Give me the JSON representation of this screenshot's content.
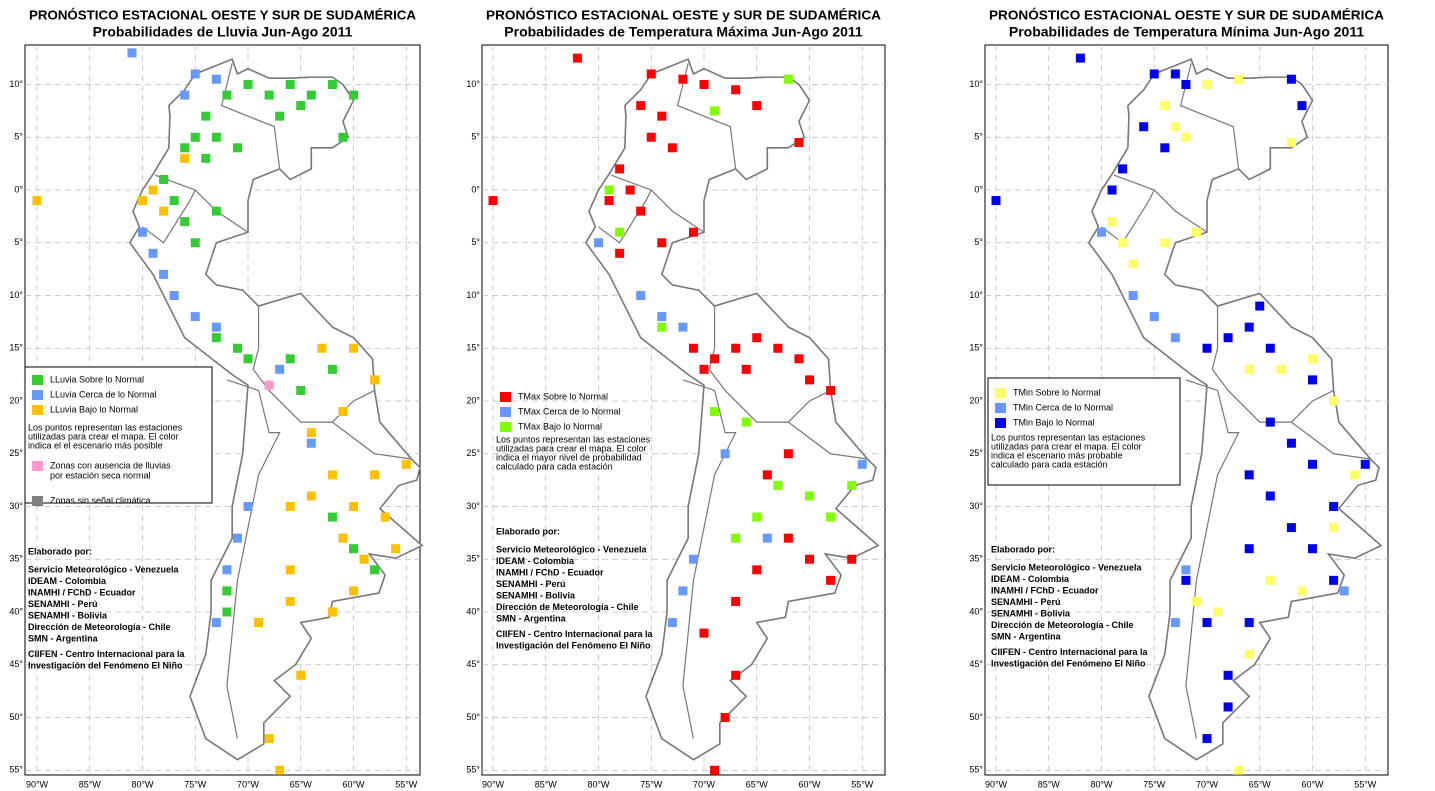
{
  "lat_ticks": [
    {
      "value": 10,
      "label": "10°"
    },
    {
      "value": 5,
      "label": "5°"
    },
    {
      "value": 0,
      "label": "0°"
    },
    {
      "value": -5,
      "label": "5°"
    },
    {
      "value": -10,
      "label": "10°"
    },
    {
      "value": -15,
      "label": "15°"
    },
    {
      "value": -20,
      "label": "20°"
    },
    {
      "value": -25,
      "label": "25°"
    },
    {
      "value": -30,
      "label": "30°"
    },
    {
      "value": -35,
      "label": "35°"
    },
    {
      "value": -40,
      "label": "40°"
    },
    {
      "value": -45,
      "label": "45°"
    },
    {
      "value": -50,
      "label": "50°"
    },
    {
      "value": -55,
      "label": "55°"
    }
  ],
  "lon_ticks": [
    {
      "value": -90,
      "label": "90°W"
    },
    {
      "value": -85,
      "label": "85°W"
    },
    {
      "value": -80,
      "label": "80°W"
    },
    {
      "value": -75,
      "label": "75°W"
    },
    {
      "value": -70,
      "label": "70°W"
    },
    {
      "value": -65,
      "label": "65°W"
    },
    {
      "value": -60,
      "label": "60°W"
    },
    {
      "value": -55,
      "label": "55°W"
    }
  ],
  "credits_title": "Elaborado por:",
  "credits": [
    "Servicio Meteorológico - Venezuela",
    "IDEAM - Colombia",
    "INAMHI / FChD - Ecuador",
    "SENAMHI - Perú",
    "SENAMHI - Bolivia",
    "Dirección de Meteorología - Chile",
    "SMN - Argentina",
    "CIIFEN - Centro Internacional para la",
    "Investigación del Fenómeno El Niño"
  ],
  "panels": [
    {
      "title": "PRONÓSTICO ESTACIONAL OESTE Y SUR DE SUDAMÉRICA",
      "subtitle": "Probabilidades de Lluvia Jun-Ago 2011",
      "legend": [
        {
          "label": "LLuvia Sobre lo Normal",
          "color": "#33cc33"
        },
        {
          "label": "LLuvia Cerca de lo Normal",
          "color": "#6699ff"
        },
        {
          "label": "LLuvia Bajo lo Normal",
          "color": "#ffc000"
        }
      ],
      "note": [
        "Los puntos representan las estaciones",
        "utilizadas para crear el mapa. El color",
        "indica el el escenario más posible"
      ],
      "extra": [
        {
          "lines": [
            "Zonas con ausencia de lluvias",
            "por estación seca normal"
          ],
          "color": "#ff99cc"
        },
        {
          "lines": [
            "Zonas sin señal climática"
          ],
          "color": "#808080"
        }
      ],
      "stations": [
        [
          -70,
          10,
          0
        ],
        [
          -68,
          9,
          0
        ],
        [
          -66,
          10,
          0
        ],
        [
          -64,
          9,
          0
        ],
        [
          -62,
          10,
          0
        ],
        [
          -60,
          9,
          0
        ],
        [
          -65,
          8,
          0
        ],
        [
          -67,
          7,
          0
        ],
        [
          -72,
          9,
          0
        ],
        [
          -74,
          7,
          0
        ],
        [
          -75,
          5,
          0
        ],
        [
          -76,
          4,
          0
        ],
        [
          -73,
          5,
          0
        ],
        [
          -71,
          4,
          0
        ],
        [
          -61,
          5,
          0
        ],
        [
          -74,
          3,
          0
        ],
        [
          -78,
          1,
          0
        ],
        [
          -77,
          -1,
          0
        ],
        [
          -76,
          -3,
          0
        ],
        [
          -73,
          -2,
          0
        ],
        [
          -75,
          -5,
          0
        ],
        [
          -73,
          -14,
          0
        ],
        [
          -71,
          -15,
          0
        ],
        [
          -70,
          -16,
          0
        ],
        [
          -66,
          -16,
          0
        ],
        [
          -62,
          -17,
          0
        ],
        [
          -65,
          -19,
          0
        ],
        [
          -72,
          -40,
          0
        ],
        [
          -72,
          -38,
          0
        ],
        [
          -60,
          -34,
          0
        ],
        [
          -58,
          -36,
          0
        ],
        [
          -62,
          -31,
          0
        ],
        [
          -81,
          13,
          1
        ],
        [
          -75,
          11,
          1
        ],
        [
          -73,
          10.5,
          1
        ],
        [
          -76,
          9,
          1
        ],
        [
          -80,
          -4,
          1
        ],
        [
          -79,
          -6,
          1
        ],
        [
          -78,
          -8,
          1
        ],
        [
          -77,
          -10,
          1
        ],
        [
          -75,
          -12,
          1
        ],
        [
          -73,
          -13,
          1
        ],
        [
          -67,
          -17,
          1
        ],
        [
          -70,
          -30,
          1
        ],
        [
          -71,
          -33,
          1
        ],
        [
          -72,
          -36,
          1
        ],
        [
          -73,
          -41,
          1
        ],
        [
          -64,
          -24,
          1
        ],
        [
          -80,
          -1,
          2
        ],
        [
          -79,
          0,
          2
        ],
        [
          -78,
          -2,
          2
        ],
        [
          -76,
          3,
          2
        ],
        [
          -90,
          -1,
          2
        ],
        [
          -60,
          -15,
          2
        ],
        [
          -63,
          -15,
          2
        ],
        [
          -58,
          -18,
          2
        ],
        [
          -61,
          -21,
          2
        ],
        [
          -64,
          -23,
          2
        ],
        [
          -62,
          -27,
          2
        ],
        [
          -58,
          -27,
          2
        ],
        [
          -55,
          -26,
          2
        ],
        [
          -60,
          -30,
          2
        ],
        [
          -57,
          -31,
          2
        ],
        [
          -64,
          -29,
          2
        ],
        [
          -66,
          -30,
          2
        ],
        [
          -61,
          -33,
          2
        ],
        [
          -59,
          -35,
          2
        ],
        [
          -56,
          -34,
          2
        ],
        [
          -66,
          -36,
          2
        ],
        [
          -66,
          -39,
          2
        ],
        [
          -62,
          -40,
          2
        ],
        [
          -69,
          -41,
          2
        ],
        [
          -65,
          -46,
          2
        ],
        [
          -68,
          -52,
          2
        ],
        [
          -67,
          -55,
          2
        ],
        [
          -60,
          -38,
          2
        ],
        [
          -68,
          -18.5,
          3
        ]
      ]
    },
    {
      "title": "PRONÓSTICO ESTACIONAL OESTE y SUR DE SUDAMÉRICA",
      "subtitle": "Probabilidades de Temperatura Máxima Jun-Ago 2011",
      "legend": [
        {
          "label": "TMax Sobre lo Normal",
          "color": "#ff0000"
        },
        {
          "label": "TMax Cerca de lo Normal",
          "color": "#6699ff"
        },
        {
          "label": "TMax Bajo lo Normal",
          "color": "#80ff00"
        }
      ],
      "note": [
        "Los puntos representan las estaciones",
        "utilizadas para crear el mapa. El color",
        "indica el mayor nivel de probabilidad",
        "calculado para cada estación"
      ],
      "extra": [],
      "stations": [
        [
          -82,
          12.5,
          0
        ],
        [
          -75,
          11,
          0
        ],
        [
          -72,
          10.5,
          0
        ],
        [
          -70,
          10,
          0
        ],
        [
          -67,
          9.5,
          0
        ],
        [
          -65,
          8,
          0
        ],
        [
          -76,
          8,
          0
        ],
        [
          -74,
          7,
          0
        ],
        [
          -75,
          5,
          0
        ],
        [
          -73,
          4,
          0
        ],
        [
          -78,
          2,
          0
        ],
        [
          -77,
          0,
          0
        ],
        [
          -79,
          -1,
          0
        ],
        [
          -76,
          -2,
          0
        ],
        [
          -78,
          -6,
          0
        ],
        [
          -74,
          -5,
          0
        ],
        [
          -90,
          -1,
          0
        ],
        [
          -71,
          -4,
          0
        ],
        [
          -61,
          4.5,
          0
        ],
        [
          -71,
          -15,
          0
        ],
        [
          -69,
          -16,
          0
        ],
        [
          -67,
          -15,
          0
        ],
        [
          -65,
          -14,
          0
        ],
        [
          -63,
          -15,
          0
        ],
        [
          -70,
          -17,
          0
        ],
        [
          -66,
          -17,
          0
        ],
        [
          -61,
          -16,
          0
        ],
        [
          -60,
          -18,
          0
        ],
        [
          -58,
          -19,
          0
        ],
        [
          -62,
          -25,
          0
        ],
        [
          -64,
          -27,
          0
        ],
        [
          -62,
          -33,
          0
        ],
        [
          -60,
          -35,
          0
        ],
        [
          -58,
          -37,
          0
        ],
        [
          -56,
          -35,
          0
        ],
        [
          -65,
          -36,
          0
        ],
        [
          -67,
          -39,
          0
        ],
        [
          -70,
          -42,
          0
        ],
        [
          -67,
          -46,
          0
        ],
        [
          -68,
          -50,
          0
        ],
        [
          -69,
          -55,
          0
        ],
        [
          -62,
          10.5,
          2
        ],
        [
          -69,
          7.5,
          2
        ],
        [
          -79,
          0,
          2
        ],
        [
          -78,
          -4,
          2
        ],
        [
          -74,
          -13,
          2
        ],
        [
          -69,
          -21,
          2
        ],
        [
          -66,
          -22,
          2
        ],
        [
          -63,
          -28,
          2
        ],
        [
          -65,
          -31,
          2
        ],
        [
          -67,
          -33,
          2
        ],
        [
          -58,
          -31,
          2
        ],
        [
          -60,
          -29,
          2
        ],
        [
          -56,
          -28,
          2
        ],
        [
          -80,
          -5,
          1
        ],
        [
          -76,
          -10,
          1
        ],
        [
          -74,
          -12,
          1
        ],
        [
          -72,
          -13,
          1
        ],
        [
          -71,
          -35,
          1
        ],
        [
          -72,
          -38,
          1
        ],
        [
          -73,
          -41,
          1
        ],
        [
          -64,
          -33,
          1
        ],
        [
          -55,
          -26,
          1
        ],
        [
          -68,
          -25,
          1
        ]
      ]
    },
    {
      "title": "PRONÓSTICO ESTACIONAL OESTE Y SUR DE SUDAMÉRICA",
      "subtitle": "Probabilidades de Temperatura Mínima Jun-Ago 2011",
      "legend": [
        {
          "label": "TMin Sobre lo Normal",
          "color": "#ffff66"
        },
        {
          "label": "TMin Cerca de lo Normal",
          "color": "#6699ff"
        },
        {
          "label": "TMin Bajo lo Normal",
          "color": "#0000ee"
        }
      ],
      "note": [
        "Los puntos representan las estaciones",
        "utilizadas para crear el mapa. El color",
        "indica el escenario más probable",
        "calculado para cada estación"
      ],
      "extra": [],
      "stations": [
        [
          -82,
          12.5,
          2
        ],
        [
          -75,
          11,
          2
        ],
        [
          -73,
          11,
          2
        ],
        [
          -72,
          10,
          2
        ],
        [
          -62,
          10.5,
          2
        ],
        [
          -61,
          8,
          2
        ],
        [
          -76,
          6,
          2
        ],
        [
          -74,
          4,
          2
        ],
        [
          -78,
          2,
          2
        ],
        [
          -79,
          0,
          2
        ],
        [
          -90,
          -1,
          2
        ],
        [
          -70,
          -15,
          2
        ],
        [
          -68,
          -14,
          2
        ],
        [
          -66,
          -13,
          2
        ],
        [
          -64,
          -15,
          2
        ],
        [
          -65,
          -11,
          2
        ],
        [
          -64,
          -22,
          2
        ],
        [
          -62,
          -24,
          2
        ],
        [
          -66,
          -27,
          2
        ],
        [
          -64,
          -29,
          2
        ],
        [
          -60,
          -26,
          2
        ],
        [
          -58,
          -30,
          2
        ],
        [
          -62,
          -32,
          2
        ],
        [
          -60,
          -34,
          2
        ],
        [
          -58,
          -37,
          2
        ],
        [
          -66,
          -34,
          2
        ],
        [
          -72,
          -37,
          2
        ],
        [
          -70,
          -41,
          2
        ],
        [
          -68,
          -46,
          2
        ],
        [
          -68,
          -49,
          2
        ],
        [
          -70,
          -52,
          2
        ],
        [
          -66,
          -41,
          2
        ],
        [
          -60,
          -18,
          2
        ],
        [
          -55,
          -26,
          2
        ],
        [
          -70,
          10,
          0
        ],
        [
          -67,
          10.5,
          0
        ],
        [
          -74,
          8,
          0
        ],
        [
          -73,
          6,
          0
        ],
        [
          -72,
          5,
          0
        ],
        [
          -79,
          -3,
          0
        ],
        [
          -78,
          -5,
          0
        ],
        [
          -74,
          -5,
          0
        ],
        [
          -71,
          -4,
          0
        ],
        [
          -77,
          -7,
          0
        ],
        [
          -62,
          4.5,
          0
        ],
        [
          -63,
          -17,
          0
        ],
        [
          -60,
          -16,
          0
        ],
        [
          -66,
          -17,
          0
        ],
        [
          -58,
          -20,
          0
        ],
        [
          -56,
          -27,
          0
        ],
        [
          -58,
          -32,
          0
        ],
        [
          -64,
          -37,
          0
        ],
        [
          -61,
          -38,
          0
        ],
        [
          -66,
          -44,
          0
        ],
        [
          -67,
          -55,
          0
        ],
        [
          -71,
          -39,
          0
        ],
        [
          -69,
          -40,
          0
        ],
        [
          -80,
          -4,
          1
        ],
        [
          -77,
          -10,
          1
        ],
        [
          -75,
          -12,
          1
        ],
        [
          -73,
          -14,
          1
        ],
        [
          -72,
          -36,
          1
        ],
        [
          -73,
          -41,
          1
        ],
        [
          -57,
          -38,
          1
        ]
      ]
    }
  ]
}
